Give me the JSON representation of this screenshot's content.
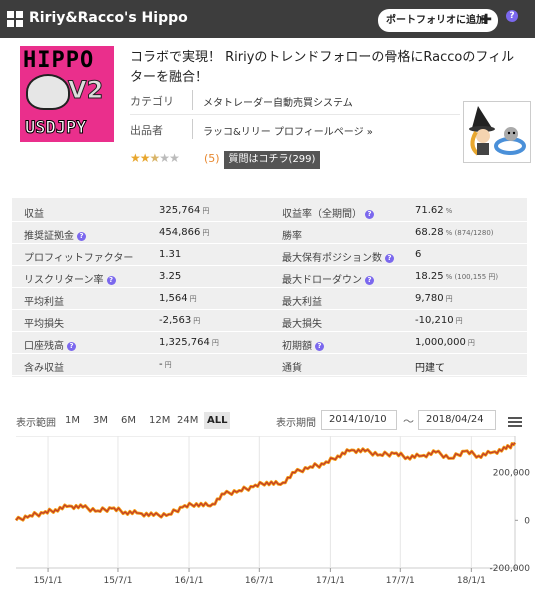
{
  "header": {
    "title": "Ririy&Racco's Hippo",
    "portfolio_button": "ポートフォリオに追加",
    "help": "?"
  },
  "product": {
    "logo_text": {
      "line1": "HIPPO",
      "line2": "V2",
      "line3": "USDJPY"
    },
    "description": "コラボで実現！ Ririyのトレンドフォローの骨格にRaccoのフィルターを融合！",
    "category_label": "カテゴリ",
    "category_value": "メタトレーダー自動売買システム",
    "seller_label": "出品者",
    "seller_value": "ラッコ&リリー プロフィールページ »",
    "rating": 2.5,
    "review_count": "(5)",
    "qa_button": "質問はコチラ(299)"
  },
  "stats": {
    "rows": [
      {
        "k1": "収益",
        "q1": false,
        "v1": "325,764",
        "u1": "円",
        "k2": "収益率（全期間）",
        "q2": true,
        "v2": "71.62",
        "u2": "%"
      },
      {
        "k1": "推奨証拠金",
        "q1": true,
        "v1": "454,866",
        "u1": "円",
        "k2": "勝率",
        "q2": false,
        "v2": "68.28",
        "u2": "% (874/1280)"
      },
      {
        "k1": "プロフィットファクター",
        "q1": false,
        "v1": "1.31",
        "u1": "",
        "k2": "最大保有ポジション数",
        "q2": true,
        "v2": "6",
        "u2": ""
      },
      {
        "k1": "リスクリターン率",
        "q1": true,
        "v1": "3.25",
        "u1": "",
        "k2": "最大ドローダウン",
        "q2": true,
        "v2": "18.25",
        "u2": "% (100,155 円)"
      },
      {
        "k1": "平均利益",
        "q1": false,
        "v1": "1,564",
        "u1": "円",
        "k2": "最大利益",
        "q2": false,
        "v2": "9,780",
        "u2": "円"
      },
      {
        "k1": "平均損失",
        "q1": false,
        "v1": "-2,563",
        "u1": "円",
        "k2": "最大損失",
        "q2": false,
        "v2": "-10,210",
        "u2": "円"
      },
      {
        "k1": "口座残高",
        "q1": true,
        "v1": "1,325,764",
        "u1": "円",
        "k2": "初期額",
        "q2": true,
        "v2": "1,000,000",
        "u2": "円"
      },
      {
        "k1": "含み収益",
        "q1": false,
        "v1": "-",
        "u1": "円",
        "k2": "通貨",
        "q2": false,
        "v2": "円建て",
        "u2": ""
      }
    ]
  },
  "range": {
    "label": "表示範囲",
    "buttons": [
      "1M",
      "3M",
      "6M",
      "12M",
      "24M",
      "ALL"
    ],
    "active": "ALL",
    "period_label": "表示期間",
    "from": "2014/10/10",
    "tilde": "～",
    "to": "2018/04/24"
  },
  "chart_data": {
    "type": "line",
    "x_ticks": [
      "15/1/1",
      "15/7/1",
      "16/1/1",
      "16/7/1",
      "17/1/1",
      "17/7/1",
      "18/1/1"
    ],
    "y_ticks": [
      "200,000",
      "0",
      "-200,000"
    ],
    "ylim": [
      -200000,
      320000
    ],
    "line_color": "#c0392b",
    "fill_color": "#f39c12",
    "series": [
      {
        "x": [
          "2014-10-10",
          "2014-11-15",
          "2014-12-20",
          "2015-01-20",
          "2015-02-25",
          "2015-04-01",
          "2015-05-10",
          "2015-06-15",
          "2015-07-20",
          "2015-08-25",
          "2015-10-01",
          "2015-11-10",
          "2015-12-15",
          "2016-01-20",
          "2016-02-25",
          "2016-04-01",
          "2016-05-10",
          "2016-06-15",
          "2016-07-20",
          "2016-08-25",
          "2016-10-01",
          "2016-11-10",
          "2016-12-15",
          "2017-01-20",
          "2017-02-25",
          "2017-04-01",
          "2017-05-10",
          "2017-06-15",
          "2017-07-20",
          "2017-08-25",
          "2017-10-01",
          "2017-11-10",
          "2017-12-15",
          "2018-01-20",
          "2018-02-25",
          "2018-04-01",
          "2018-04-24"
        ],
        "values": [
          0,
          20000,
          30000,
          45000,
          60000,
          55000,
          40000,
          50000,
          35000,
          30000,
          20000,
          25000,
          55000,
          70000,
          60000,
          110000,
          125000,
          140000,
          160000,
          150000,
          200000,
          225000,
          235000,
          270000,
          295000,
          290000,
          275000,
          280000,
          265000,
          270000,
          285000,
          260000,
          290000,
          270000,
          285000,
          300000,
          325764
        ]
      }
    ]
  }
}
